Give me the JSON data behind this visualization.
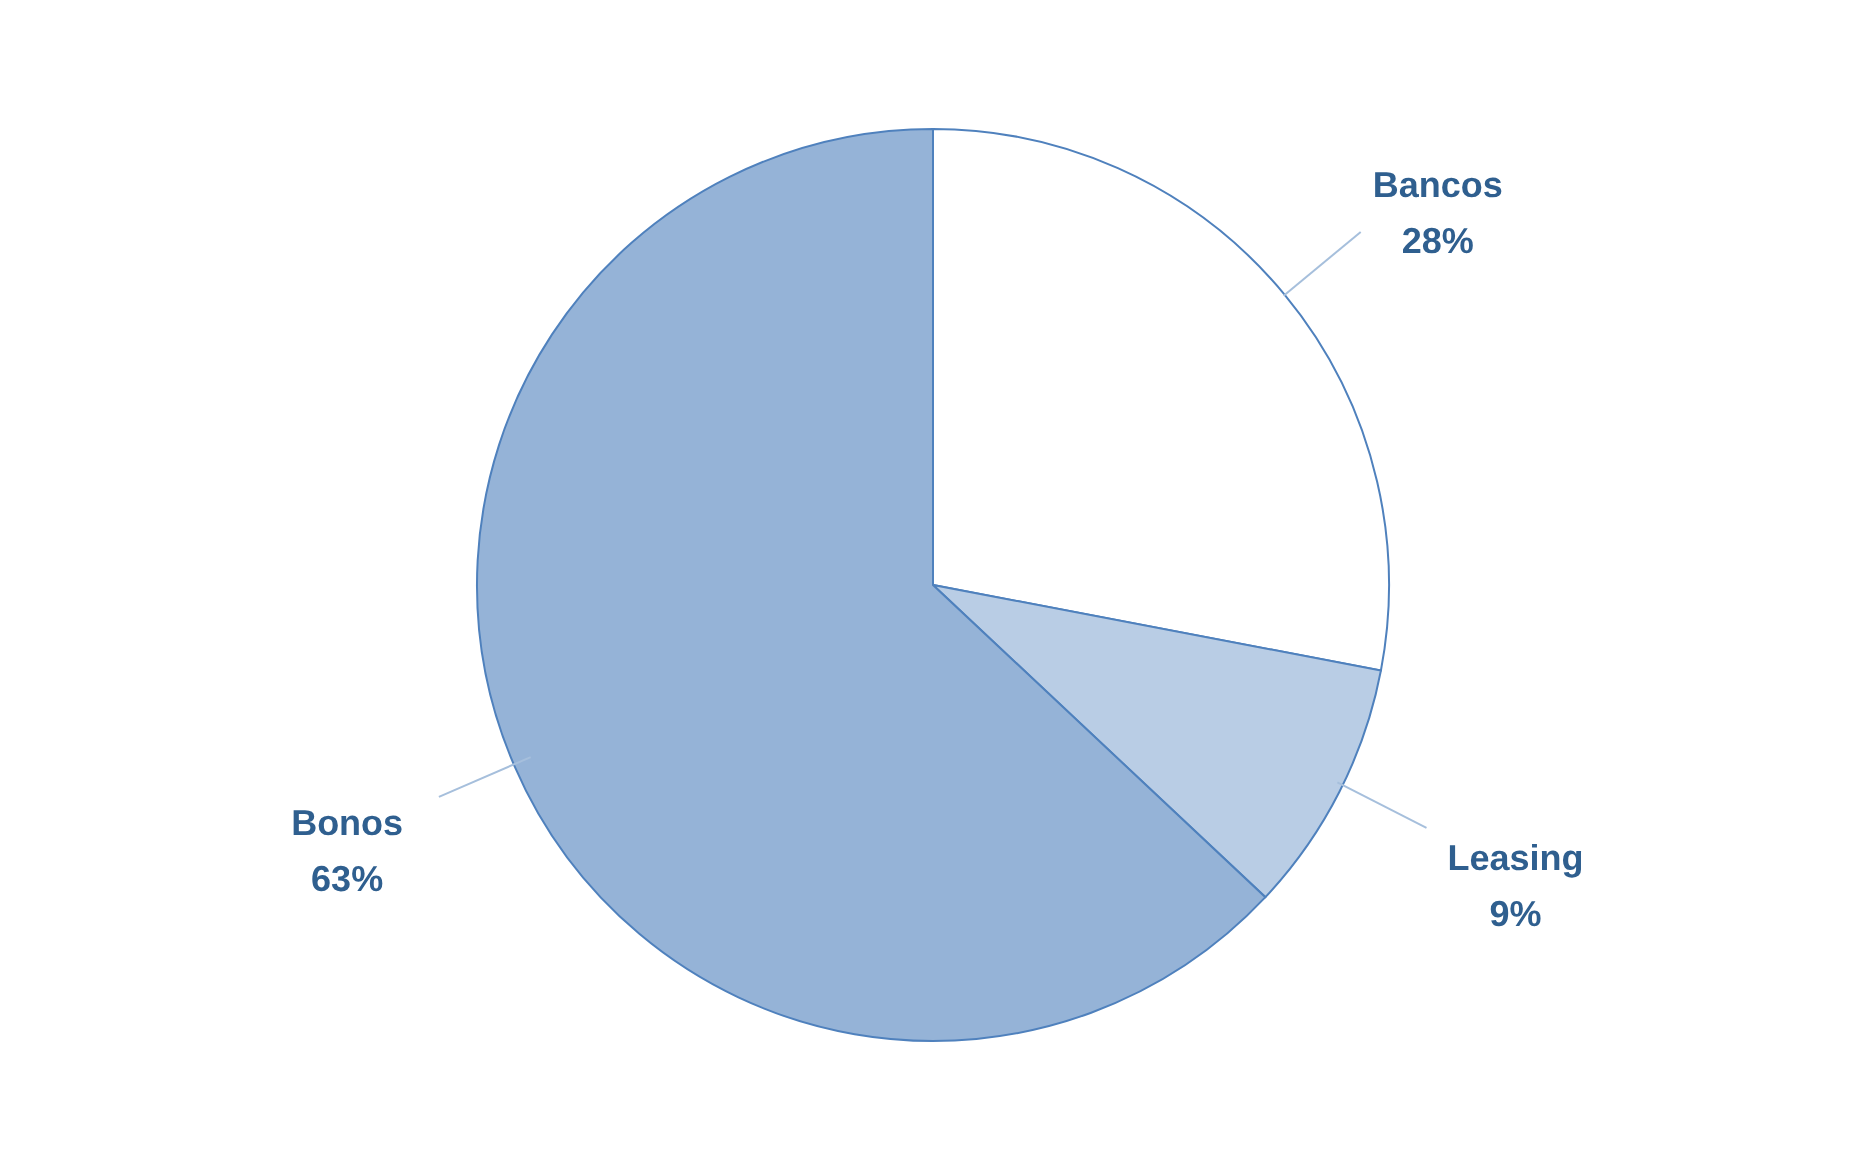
{
  "chart_data": {
    "type": "pie",
    "categories": [
      "Bancos",
      "Leasing",
      "Bonos"
    ],
    "values": [
      28,
      9,
      63
    ],
    "value_labels": [
      "28%",
      "9%",
      "63%"
    ],
    "colors": [
      "#ffffff",
      "#b9cde5",
      "#95b3d7"
    ]
  }
}
